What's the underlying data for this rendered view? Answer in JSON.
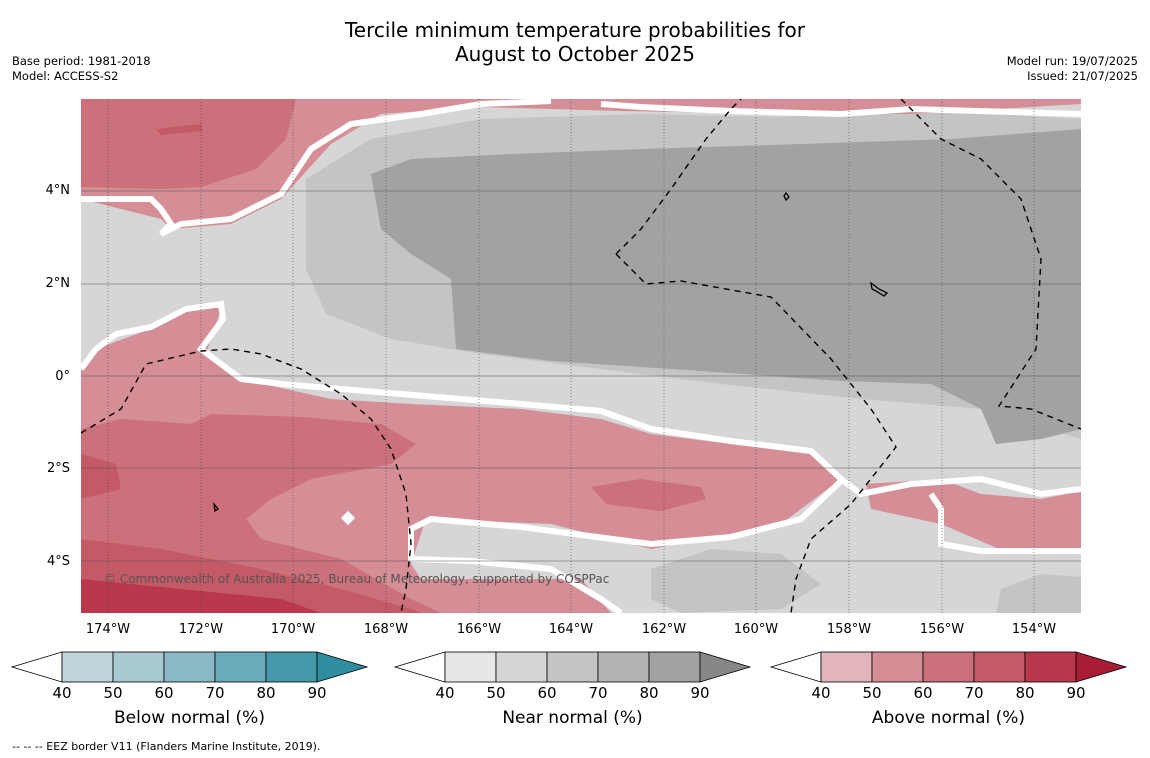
{
  "title_line1": "Tercile minimum temperature probabilities for",
  "title_line2": "August to October 2025",
  "base_period": "Base period: 1981-2018",
  "model": "Model: ACCESS-S2",
  "model_run": "Model run: 19/07/2025",
  "issued": "Issued: 21/07/2025",
  "lat_labels": [
    "4°N",
    "2°N",
    "0°",
    "2°S",
    "4°S"
  ],
  "lon_labels": [
    "174°W",
    "172°W",
    "170°W",
    "168°W",
    "166°W",
    "164°W",
    "162°W",
    "160°W",
    "158°W",
    "156°W",
    "154°W"
  ],
  "copyright": "© Commonwealth of Australia 2025, Bureau of Meteorology, supported by COSPPac",
  "footnote": "--  --  -- EEZ border V11 (Flanders Marine Institute, 2019).",
  "legends": [
    {
      "title": "Below normal (%)",
      "ticks": [
        "40",
        "50",
        "60",
        "70",
        "80",
        "90"
      ],
      "colors": [
        "#ffffff",
        "#bdd5db",
        "#a7c9cf",
        "#8ab8c4",
        "#6aacbb",
        "#4599aa",
        "#2e8e9f"
      ]
    },
    {
      "title": "Near normal (%)",
      "ticks": [
        "40",
        "50",
        "60",
        "70",
        "80",
        "90"
      ],
      "colors": [
        "#ffffff",
        "#e6e6e6",
        "#d6d6d6",
        "#c4c4c4",
        "#b4b4b4",
        "#a2a2a2",
        "#878787"
      ]
    },
    {
      "title": "Above normal (%)",
      "ticks": [
        "40",
        "50",
        "60",
        "70",
        "80",
        "90"
      ],
      "colors": [
        "#ffffff",
        "#e2b4bb",
        "#d58d96",
        "#cc707b",
        "#c45a66",
        "#b9384b",
        "#a81c35"
      ]
    }
  ],
  "map_colors": {
    "near50": "#d6d6d6",
    "near60": "#c4c4c4",
    "near80": "#a2a2a2",
    "above50": "#d58d96",
    "above60": "#cc707b",
    "above70": "#c45a66",
    "above80": "#b9384b"
  }
}
